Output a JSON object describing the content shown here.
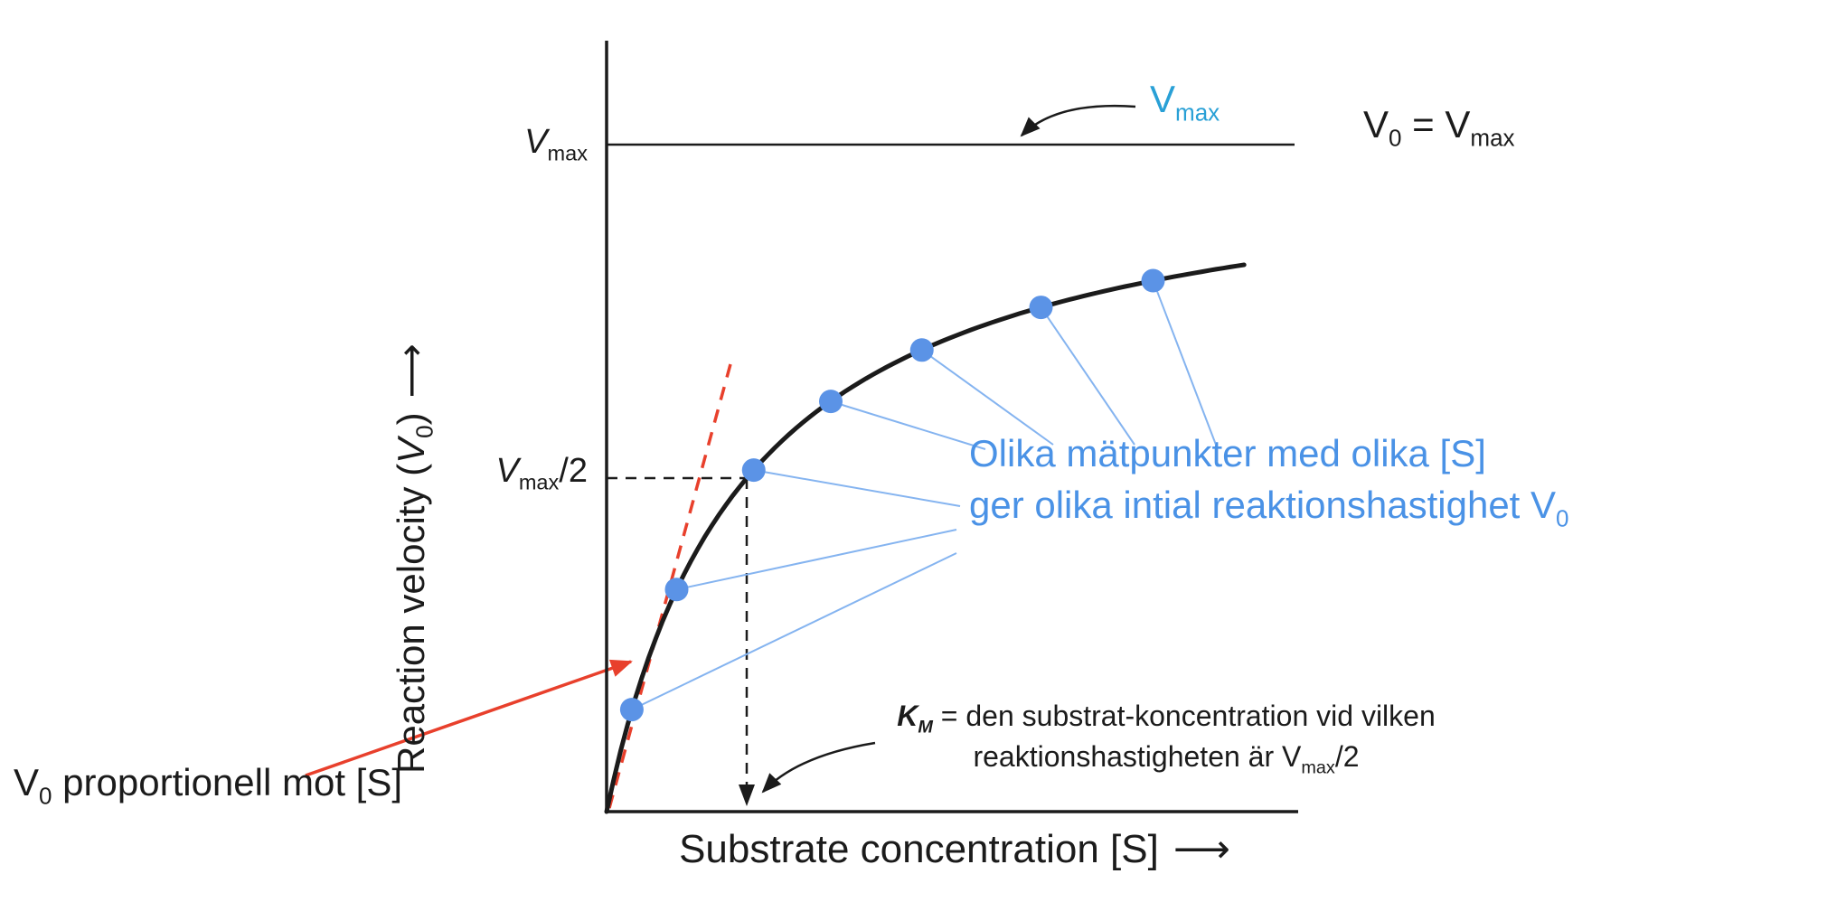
{
  "chart_data": {
    "type": "line",
    "xlabel": "Substrate concentration [S]",
    "ylabel": "Reaction velocity (V0)",
    "axis_arrow": "⟶",
    "xlim_rel_km": [
      0,
      4.9
    ],
    "ylim_rel_vmax": [
      0,
      1.15
    ],
    "grid": false,
    "curve": {
      "model": "michaelis-menten",
      "km_rel": 1,
      "vmax_rel": 1
    },
    "y_ticks": [
      {
        "value_rel_vmax": 1.0,
        "label": "Vmax"
      },
      {
        "value_rel_vmax": 0.5,
        "label": "Vmax/2"
      }
    ],
    "reference_lines": [
      {
        "name": "vmax-asymptote",
        "axis": "y",
        "value_rel": 1.0,
        "style": "solid"
      },
      {
        "name": "half-vmax-guide",
        "axis": "y",
        "value_rel": 0.5,
        "style": "dashed"
      },
      {
        "name": "km-guide",
        "axis": "x",
        "value_rel": 1.0,
        "style": "dashed-arrow"
      }
    ],
    "points": [
      {
        "s_rel_km": 0.18,
        "v0_rel_vmax": 0.153
      },
      {
        "s_rel_km": 0.5,
        "v0_rel_vmax": 0.333
      },
      {
        "s_rel_km": 1.05,
        "v0_rel_vmax": 0.512
      },
      {
        "s_rel_km": 1.6,
        "v0_rel_vmax": 0.615
      },
      {
        "s_rel_km": 2.25,
        "v0_rel_vmax": 0.692
      },
      {
        "s_rel_km": 3.1,
        "v0_rel_vmax": 0.756
      },
      {
        "s_rel_km": 3.9,
        "v0_rel_vmax": 0.796
      }
    ],
    "colors": {
      "axis": "#1b1b1b",
      "curve": "#1b1b1b",
      "points": "#5b93e6",
      "connectors": "#85b4f0",
      "annotation_blue": "#4a92e6",
      "callout_blue": "#29a0d6",
      "tangent_red": "#e8402c"
    }
  },
  "labels": {
    "y_axis": {
      "text_pre": "Reaction velocity (",
      "var": "V",
      "var_sub": "0",
      "text_post": ")",
      "arrow": "⟶"
    },
    "x_axis": {
      "text": "Substrate concentration [S]",
      "arrow": "⟶"
    },
    "vmax_tick": {
      "var": "V",
      "sub": "max"
    },
    "half_vmax_tick": {
      "var": "V",
      "sub": "max",
      "suffix": "/2"
    },
    "vmax_callout": {
      "var": "V",
      "sub": "max"
    },
    "v0_equals_vmax": {
      "lhs_var": "V",
      "lhs_sub": "0",
      "mid": " = ",
      "rhs_var": "V",
      "rhs_sub": "max"
    },
    "blue_note": {
      "line1": "Olika mätpunkter med olika [S]",
      "line2_pre": "ger olika intial reaktionshastighet V",
      "line2_sub": "0"
    },
    "km_note": {
      "km_var": "K",
      "km_sub": "M",
      "line1_rest": " = den substrat-koncentration vid vilken",
      "line2_pre": "reaktionshastigheten är V",
      "line2_sub": "max",
      "line2_post": "/2"
    },
    "red_note": {
      "var": "V",
      "sub": "0",
      "rest": " proportionell mot [S]"
    }
  }
}
